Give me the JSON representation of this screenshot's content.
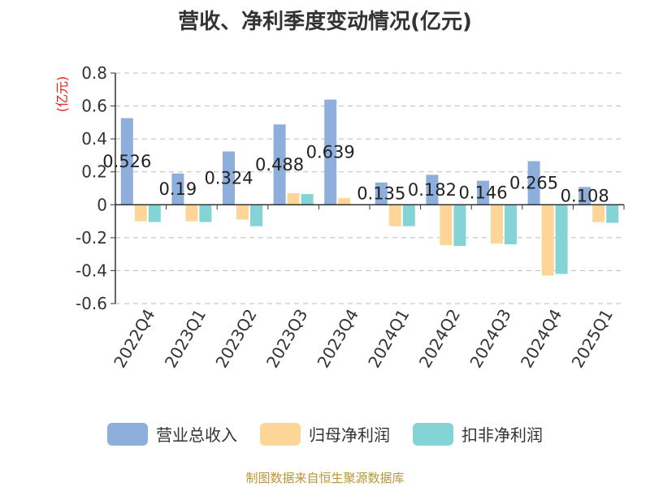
{
  "title": "营收、净利季度变动情况(亿元)",
  "source": "制图数据来自恒生聚源数据库",
  "colors": {
    "revenue": "#8eaedb",
    "net_profit": "#fdd597",
    "deducted_profit": "#84d3d5",
    "axis": "#333333",
    "grid": "#bbbbbb",
    "unit": "#e02020"
  },
  "chart_data": {
    "type": "bar",
    "title": "营收、净利季度变动情况(亿元)",
    "unit_label": "(亿元)",
    "categories": [
      "2022Q4",
      "2023Q1",
      "2023Q2",
      "2023Q3",
      "2023Q4",
      "2024Q1",
      "2024Q2",
      "2024Q3",
      "2024Q4",
      "2025Q1"
    ],
    "ylim": [
      -0.6,
      0.8
    ],
    "yticks": [
      "0.8",
      "0.6",
      "0.4",
      "0.2",
      "0",
      "-0.2",
      "-0.4",
      "-0.6"
    ],
    "grid": true,
    "legend_position": "bottom",
    "series": [
      {
        "name": "营业总收入",
        "key": "revenue",
        "values": [
          0.526,
          0.19,
          0.324,
          0.488,
          0.639,
          0.135,
          0.182,
          0.146,
          0.265,
          0.108
        ],
        "labels": [
          "0.526",
          "0.19",
          "0.324",
          "0.488",
          "0.639",
          "0.135",
          "0.182",
          "0.146",
          "0.265",
          "0.108"
        ]
      },
      {
        "name": "归母净利润",
        "key": "net_profit",
        "values": [
          -0.1,
          -0.1,
          -0.09,
          0.07,
          0.04,
          -0.13,
          -0.245,
          -0.235,
          -0.43,
          -0.105
        ]
      },
      {
        "name": "扣非净利润",
        "key": "deducted_profit",
        "values": [
          -0.105,
          -0.105,
          -0.13,
          0.065,
          0.0,
          -0.13,
          -0.25,
          -0.24,
          -0.42,
          -0.11
        ]
      }
    ]
  }
}
